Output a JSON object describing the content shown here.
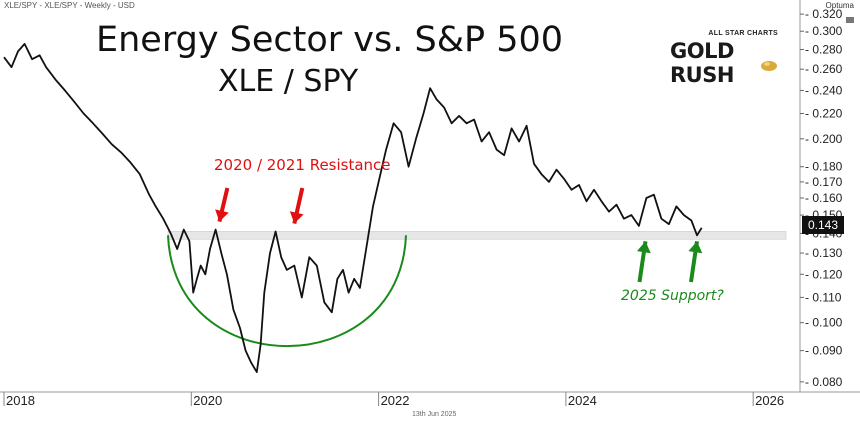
{
  "header": {
    "symbol_line": "XLE/SPY - XLE/SPY - Weekly - USD",
    "brand": "Optuma",
    "date": "13th Jun 2025"
  },
  "title": {
    "line1": "Energy Sector vs. S&P 500",
    "line2": "XLE / SPY"
  },
  "logo": {
    "small": "ALL STAR CHARTS",
    "big": "GOLD RUSH"
  },
  "annotations": {
    "resistance": "2020 / 2021 Resistance",
    "support": "2025 Support?"
  },
  "last_value": "0.143",
  "colors": {
    "line": "#111111",
    "resistance_text": "#e01010",
    "support_text": "#1a8a1a",
    "cup": "#1a8a1a",
    "band": "#e6e6e6"
  },
  "chart_data": {
    "type": "line",
    "title": "Energy Sector vs. S&P 500",
    "subtitle": "XLE / SPY",
    "x_ticks": [
      "2018",
      "2020",
      "2022",
      "2024",
      "2026"
    ],
    "y_ticks": [
      "0.080",
      "0.090",
      "0.100",
      "0.110",
      "0.120",
      "0.130",
      "0.140",
      "0.150",
      "0.160",
      "0.170",
      "0.180",
      "0.200",
      "0.220",
      "0.240",
      "0.260",
      "0.280",
      "0.300",
      "0.320"
    ],
    "y_scale": "log",
    "ylim": [
      0.077,
      0.325
    ],
    "xlim": [
      2018.0,
      2026.5
    ],
    "series": [
      {
        "frequency": "weekly",
        "x": [
          2018.0,
          2018.08,
          2018.15,
          2018.22,
          2018.3,
          2018.38,
          2018.45,
          2018.55,
          2018.65,
          2018.75,
          2018.85,
          2018.95,
          2019.05,
          2019.15,
          2019.25,
          2019.35,
          2019.45,
          2019.55,
          2019.62,
          2019.7,
          2019.78,
          2019.85,
          2019.92,
          2019.98,
          2020.02,
          2020.06,
          2020.1,
          2020.15,
          2020.2,
          2020.26,
          2020.32,
          2020.38,
          2020.45,
          2020.52,
          2020.58,
          2020.64,
          2020.7,
          2020.74,
          2020.78,
          2020.84,
          2020.9,
          2020.96,
          2021.02,
          2021.1,
          2021.18,
          2021.26,
          2021.34,
          2021.42,
          2021.5,
          2021.56,
          2021.62,
          2021.68,
          2021.74,
          2021.8,
          2021.86,
          2021.94,
          2022.0,
          2022.08,
          2022.16,
          2022.24,
          2022.32,
          2022.4,
          2022.48,
          2022.55,
          2022.62,
          2022.7,
          2022.78,
          2022.86,
          2022.94,
          2023.02,
          2023.1,
          2023.18,
          2023.26,
          2023.34,
          2023.42,
          2023.5,
          2023.58,
          2023.66,
          2023.74,
          2023.82,
          2023.9,
          2023.98,
          2024.06,
          2024.14,
          2024.22,
          2024.3,
          2024.38,
          2024.46,
          2024.54,
          2024.62,
          2024.7,
          2024.78,
          2024.86,
          2024.94,
          2025.02,
          2025.1,
          2025.18,
          2025.26,
          2025.34,
          2025.4,
          2025.45
        ],
        "values": [
          0.272,
          0.262,
          0.278,
          0.286,
          0.27,
          0.274,
          0.262,
          0.25,
          0.24,
          0.23,
          0.22,
          0.212,
          0.204,
          0.196,
          0.19,
          0.183,
          0.175,
          0.162,
          0.155,
          0.148,
          0.14,
          0.132,
          0.142,
          0.136,
          0.112,
          0.118,
          0.124,
          0.12,
          0.132,
          0.142,
          0.13,
          0.12,
          0.105,
          0.098,
          0.09,
          0.086,
          0.083,
          0.092,
          0.112,
          0.13,
          0.141,
          0.128,
          0.122,
          0.124,
          0.11,
          0.128,
          0.124,
          0.108,
          0.104,
          0.118,
          0.122,
          0.112,
          0.118,
          0.114,
          0.13,
          0.155,
          0.17,
          0.192,
          0.212,
          0.205,
          0.18,
          0.2,
          0.22,
          0.242,
          0.232,
          0.225,
          0.212,
          0.218,
          0.212,
          0.215,
          0.198,
          0.205,
          0.192,
          0.188,
          0.208,
          0.198,
          0.21,
          0.182,
          0.175,
          0.17,
          0.178,
          0.172,
          0.165,
          0.168,
          0.158,
          0.165,
          0.158,
          0.152,
          0.156,
          0.148,
          0.15,
          0.144,
          0.16,
          0.162,
          0.148,
          0.145,
          0.155,
          0.15,
          0.147,
          0.139,
          0.143
        ]
      }
    ],
    "resistance_level": 0.139,
    "annotations": [
      {
        "text": "2020 / 2021 Resistance",
        "type": "arrows-down",
        "targets": [
          [
            2020.3,
            0.142
          ],
          [
            2021.1,
            0.141
          ]
        ]
      },
      {
        "text": "2025 Support?",
        "type": "arrows-up",
        "targets": [
          [
            2024.85,
            0.139
          ],
          [
            2025.4,
            0.139
          ]
        ]
      }
    ],
    "last_value": 0.143
  }
}
